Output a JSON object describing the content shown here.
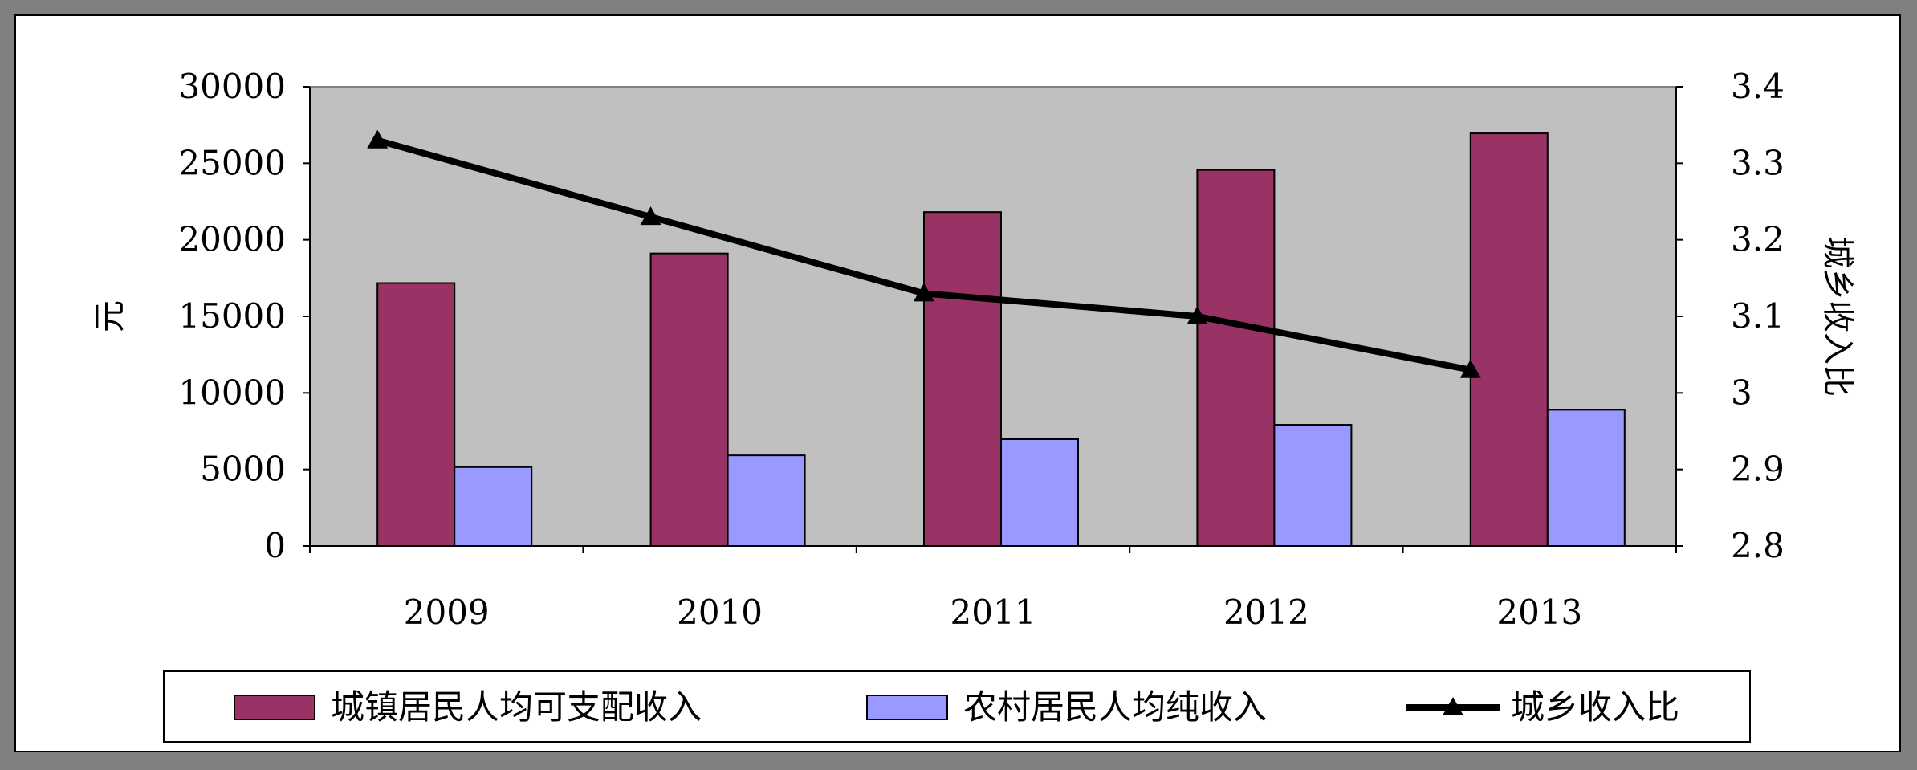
{
  "chart_data": {
    "type": "bar",
    "categories": [
      "2009",
      "2010",
      "2011",
      "2012",
      "2013"
    ],
    "series": [
      {
        "name": "城镇居民人均可支配收入",
        "kind": "bar",
        "axis": "left",
        "color": "#993366",
        "values": [
          17175,
          19109,
          21810,
          24565,
          26955
        ]
      },
      {
        "name": "农村居民人均纯收入",
        "kind": "bar",
        "axis": "left",
        "color": "#9999FF",
        "values": [
          5153,
          5919,
          6977,
          7917,
          8896
        ]
      },
      {
        "name": "城乡收入比",
        "kind": "line",
        "axis": "right",
        "color": "#000000",
        "marker": "triangle",
        "values": [
          3.33,
          3.23,
          3.13,
          3.1,
          3.03
        ]
      }
    ],
    "ylabel": "元",
    "y2label": "城乡收入比",
    "ylim": [
      0,
      30000
    ],
    "yticks": [
      "0",
      "5000",
      "10000",
      "15000",
      "20000",
      "25000",
      "30000"
    ],
    "y2lim": [
      2.8,
      3.4
    ],
    "y2ticks": [
      "2.8",
      "2.9",
      "3",
      "3.1",
      "3.2",
      "3.3",
      "3.4"
    ],
    "plot_background": "#C0C0C0",
    "grid": false,
    "legend": "bottom"
  }
}
